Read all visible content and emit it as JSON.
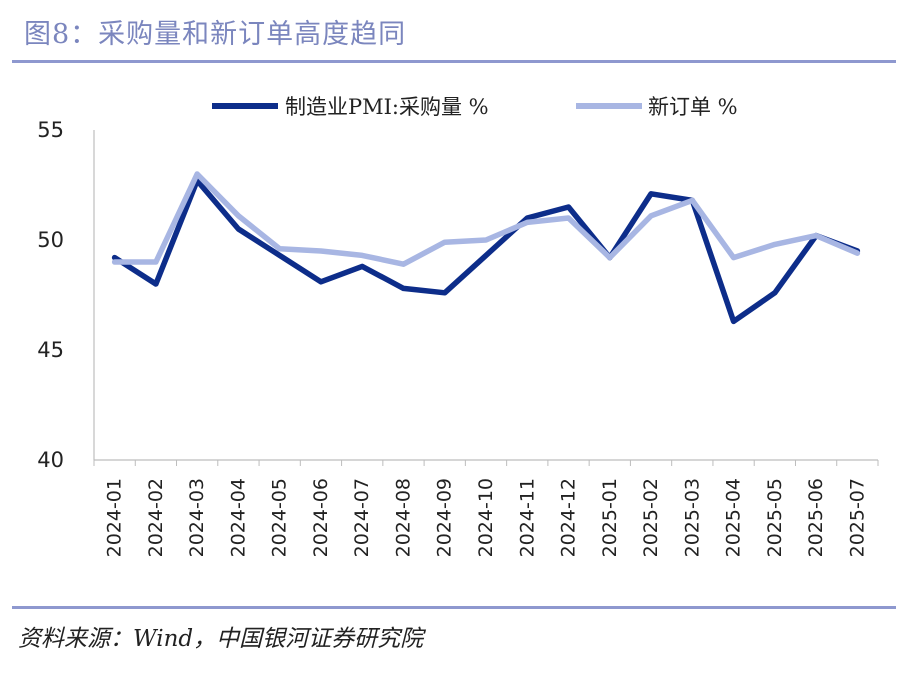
{
  "title": "图8：采购量和新订单高度趋同",
  "source": "资料来源：Wind，中国银河证券研究院",
  "chart_data": {
    "type": "line",
    "categories": [
      "2024-01",
      "2024-02",
      "2024-03",
      "2024-04",
      "2024-05",
      "2024-06",
      "2024-07",
      "2024-08",
      "2024-09",
      "2024-10",
      "2024-11",
      "2024-12",
      "2025-01",
      "2025-02",
      "2025-03",
      "2025-04",
      "2025-05",
      "2025-06",
      "2025-07"
    ],
    "series": [
      {
        "name": "制造业PMI:采购量 %",
        "color": "#0d2d8a",
        "values": [
          49.2,
          48.0,
          52.7,
          50.5,
          49.3,
          48.1,
          48.8,
          47.8,
          47.6,
          49.3,
          51.0,
          51.5,
          49.2,
          52.1,
          51.8,
          46.3,
          47.6,
          50.2,
          49.5
        ]
      },
      {
        "name": "新订单 %",
        "color": "#a8b6e3",
        "values": [
          49.0,
          49.0,
          53.0,
          51.1,
          49.6,
          49.5,
          49.3,
          48.9,
          49.9,
          50.0,
          50.8,
          51.0,
          49.2,
          51.1,
          51.8,
          49.2,
          49.8,
          50.2,
          49.4
        ]
      }
    ],
    "ylim": [
      40,
      55
    ],
    "yticks": [
      40,
      45,
      50,
      55
    ],
    "legend_position": "top",
    "grid": false
  }
}
